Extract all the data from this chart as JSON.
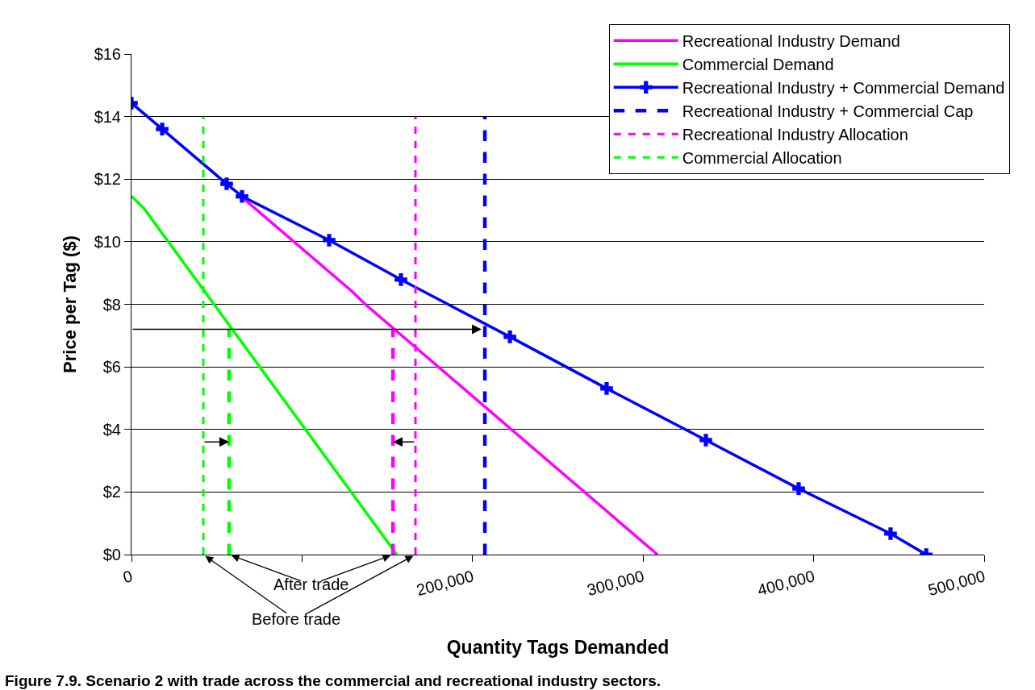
{
  "chart_data": {
    "type": "line",
    "xlabel": "Quantity Tags Demanded",
    "ylabel": "Price per Tag ($)",
    "xlim": [
      0,
      500000
    ],
    "xticks": [
      0,
      {
        "value": 100000,
        "label": null
      },
      {
        "value": 200000,
        "label": "200,000"
      },
      {
        "value": 300000,
        "label": "300,000"
      },
      {
        "value": 400000,
        "label": "400,000"
      },
      {
        "value": 500000,
        "label": "500,000"
      }
    ],
    "ylim": [
      0,
      16
    ],
    "yticks": [
      {
        "value": 0,
        "label": "$0"
      },
      {
        "value": 2,
        "label": "$2"
      },
      {
        "value": 4,
        "label": "$4"
      },
      {
        "value": 6,
        "label": "$6"
      },
      {
        "value": 8,
        "label": "$8"
      },
      {
        "value": 10,
        "label": "$10"
      },
      {
        "value": 12,
        "label": "$12"
      },
      {
        "value": 14,
        "label": "$14"
      },
      {
        "value": 16,
        "label": "$16"
      }
    ],
    "grid": "y",
    "legend": "top right",
    "series": [
      {
        "name": "Recreational Industry Demand",
        "color": "#ff00ff",
        "x": [
          64800,
          129600,
          136700,
          308400
        ],
        "values": [
          11.42,
          8.4,
          8.02,
          0
        ]
      },
      {
        "name": "Commercial Demand",
        "color": "#00ff00",
        "x": [
          0,
          7100,
          155600
        ],
        "values": [
          11.45,
          11.08,
          0
        ]
      },
      {
        "name": "Recreational Industry + Commercial Demand",
        "color": "#0000ff",
        "marker": "cross",
        "x": [
          0,
          18000,
          55800,
          64800,
          115900,
          158000,
          221900,
          278600,
          336800,
          391200,
          445100,
          466000
        ],
        "values": [
          14.43,
          13.6,
          11.85,
          11.45,
          10.05,
          8.79,
          6.96,
          5.31,
          3.66,
          2.11,
          0.67,
          0
        ]
      },
      {
        "name": "Recreational Industry + Commercial Cap",
        "color": "#0000ff",
        "line_style": "dashed",
        "x": [
          207200,
          207200
        ],
        "values": [
          0,
          14
        ]
      },
      {
        "name": "Recreational Industry Allocation",
        "color": "#ff00ff",
        "line_style": "dashed",
        "x": [
          166500,
          166500
        ],
        "values": [
          0,
          14
        ]
      },
      {
        "name": "Commercial Allocation",
        "color": "#00ff00",
        "line_style": "dashed",
        "x": [
          42100,
          42100
        ],
        "values": [
          0,
          14
        ]
      },
      {
        "color": "#ff00ff",
        "line_style": "dashed",
        "x": [
          153300,
          153300
        ],
        "values": [
          0,
          7.2
        ]
      },
      {
        "color": "#00ff00",
        "line_style": "dashed",
        "x": [
          57200,
          57200
        ],
        "values": [
          0,
          7.2
        ]
      }
    ],
    "ref_lines": [
      {
        "axis": "y",
        "value": 7.2,
        "color": "#000000"
      }
    ],
    "annotations": [
      "After trade",
      "Before trade",
      "Figure 7.9. Scenario 2 with trade across the commercial and recreational industry sectors."
    ]
  }
}
